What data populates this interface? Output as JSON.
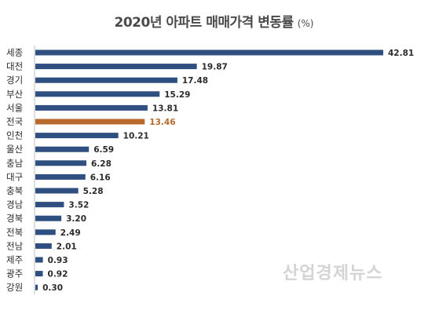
{
  "header": {
    "title": "2020년 아파트 매매가격 변동률",
    "unit": "(%)"
  },
  "watermark": "산업경제뉴스",
  "colors": {
    "bar": "#2e4f80",
    "highlight": "#b86a2c",
    "label": "#2b2b2b",
    "axis": "#bfbfbf"
  },
  "chart_data": {
    "type": "bar",
    "orientation": "horizontal",
    "title": "2020년 아파트 매매가격 변동률 (%)",
    "categories": [
      "세종",
      "대전",
      "경기",
      "부산",
      "서울",
      "전국",
      "인천",
      "울산",
      "충남",
      "대구",
      "충북",
      "경남",
      "경북",
      "전북",
      "전남",
      "제주",
      "광주",
      "강원"
    ],
    "values": [
      42.81,
      19.87,
      17.48,
      15.29,
      13.81,
      13.46,
      10.21,
      6.59,
      6.28,
      6.16,
      5.28,
      3.52,
      3.2,
      2.49,
      2.01,
      0.93,
      0.92,
      0.3
    ],
    "value_labels": [
      "42.81",
      "19.87",
      "17.48",
      "15.29",
      "13.81",
      "13.46",
      "10.21",
      "6.59",
      "6.28",
      "6.16",
      "5.28",
      "3.52",
      "3.20",
      "2.49",
      "2.01",
      "0.93",
      "0.92",
      "0.30"
    ],
    "highlight_category": "전국",
    "xlim": [
      0,
      45
    ],
    "grid": false,
    "legend": "none"
  }
}
